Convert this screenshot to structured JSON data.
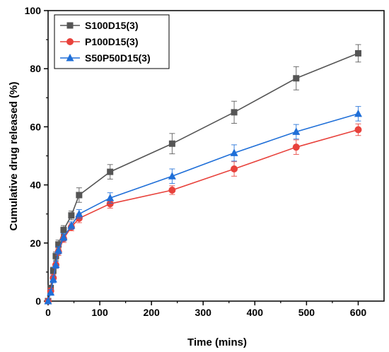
{
  "chart_data": {
    "type": "line",
    "title": "",
    "xlabel": "Time (mins)",
    "ylabel": "Cumulative drug released (%)",
    "xlim": [
      0,
      650
    ],
    "ylim": [
      0,
      100
    ],
    "x_ticks": [
      0,
      100,
      200,
      300,
      400,
      500,
      600
    ],
    "y_ticks": [
      0,
      20,
      40,
      60,
      80,
      100
    ],
    "x": [
      0,
      5,
      10,
      15,
      20,
      30,
      45,
      60,
      120,
      240,
      360,
      480,
      600
    ],
    "legend_position": "top-left",
    "grid": false,
    "series": [
      {
        "name": "S100D15(3)",
        "color": "#555555",
        "marker": "square",
        "values": [
          0,
          4.5,
          10.5,
          15.5,
          19.5,
          24.5,
          29.5,
          36.5,
          44.5,
          54.2,
          65,
          76.7,
          85.3
        ],
        "errors": [
          0.5,
          1,
          1.2,
          1.4,
          1.5,
          1.5,
          1.5,
          2.5,
          2.5,
          3.5,
          3.8,
          4,
          3
        ]
      },
      {
        "name": "P100D15(3)",
        "color": "#e8423c",
        "marker": "circle",
        "values": [
          0,
          3.5,
          8,
          12.5,
          17,
          21.5,
          25.5,
          28.5,
          33.5,
          38.2,
          45.5,
          53,
          59
        ],
        "errors": [
          0.5,
          1,
          1.2,
          1.2,
          1.3,
          1.3,
          1.3,
          1.5,
          1.5,
          1.5,
          2.5,
          2.5,
          2
        ]
      },
      {
        "name": "S50P50D15(3)",
        "color": "#1f6fd8",
        "marker": "triangle",
        "values": [
          0,
          3,
          7.5,
          12.5,
          17.5,
          22,
          26,
          30,
          35.5,
          43,
          51,
          58.3,
          64.5
        ],
        "errors": [
          0.5,
          1,
          1.2,
          1.2,
          1.3,
          1.3,
          1.3,
          1.5,
          1.8,
          2.5,
          2.8,
          2.5,
          2.5
        ]
      }
    ]
  }
}
